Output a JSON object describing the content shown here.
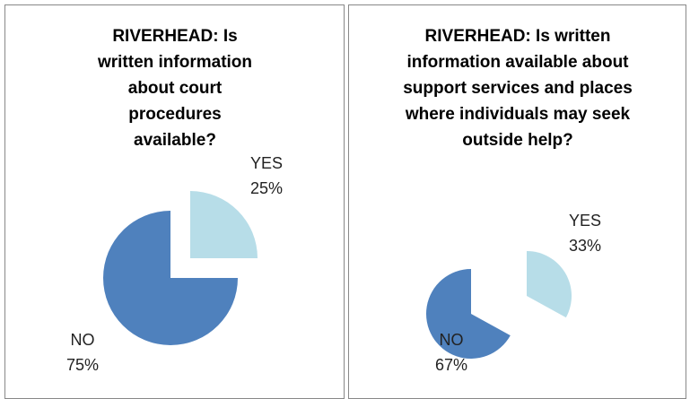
{
  "chart_data": [
    {
      "type": "pie",
      "title": "RIVERHEAD: Is written information about court procedures available?",
      "categories": [
        "YES",
        "NO"
      ],
      "values": [
        25,
        75
      ],
      "value_labels": [
        "25%",
        "75%"
      ],
      "colors": [
        "#b7dde8",
        "#4f81bd"
      ]
    },
    {
      "type": "pie",
      "title": "RIVERHEAD: Is written information available about support services and places where individuals may seek outside help?",
      "categories": [
        "YES",
        "NO"
      ],
      "values": [
        33,
        67
      ],
      "value_labels": [
        "33%",
        "67%"
      ],
      "colors": [
        "#b7dde8",
        "#4f81bd"
      ]
    }
  ]
}
